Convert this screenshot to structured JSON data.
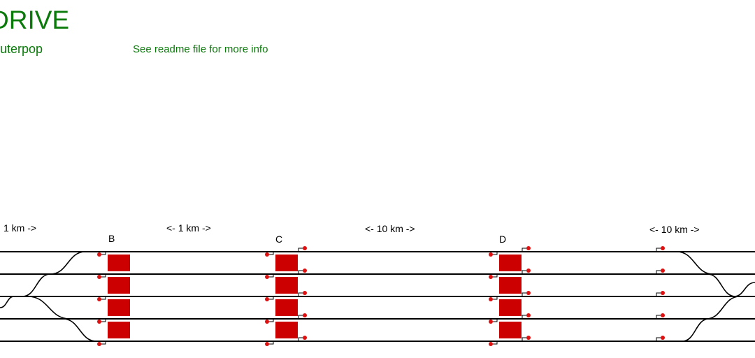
{
  "header": {
    "title": "DRIVE",
    "subtitle": "uterpop",
    "readme_note": "See readme file for more info"
  },
  "diagram": {
    "stations": [
      {
        "name": "B"
      },
      {
        "name": "C"
      },
      {
        "name": "D"
      }
    ],
    "distance_labels": [
      "1 km ->",
      "<- 1 km ->",
      "<- 10 km ->",
      "<- 10 km ->"
    ],
    "track_count": 5,
    "colors": {
      "track": "#000000",
      "platform": "#cc0000",
      "signal": "#dd1111",
      "header_text": "#0a7a0a"
    }
  }
}
